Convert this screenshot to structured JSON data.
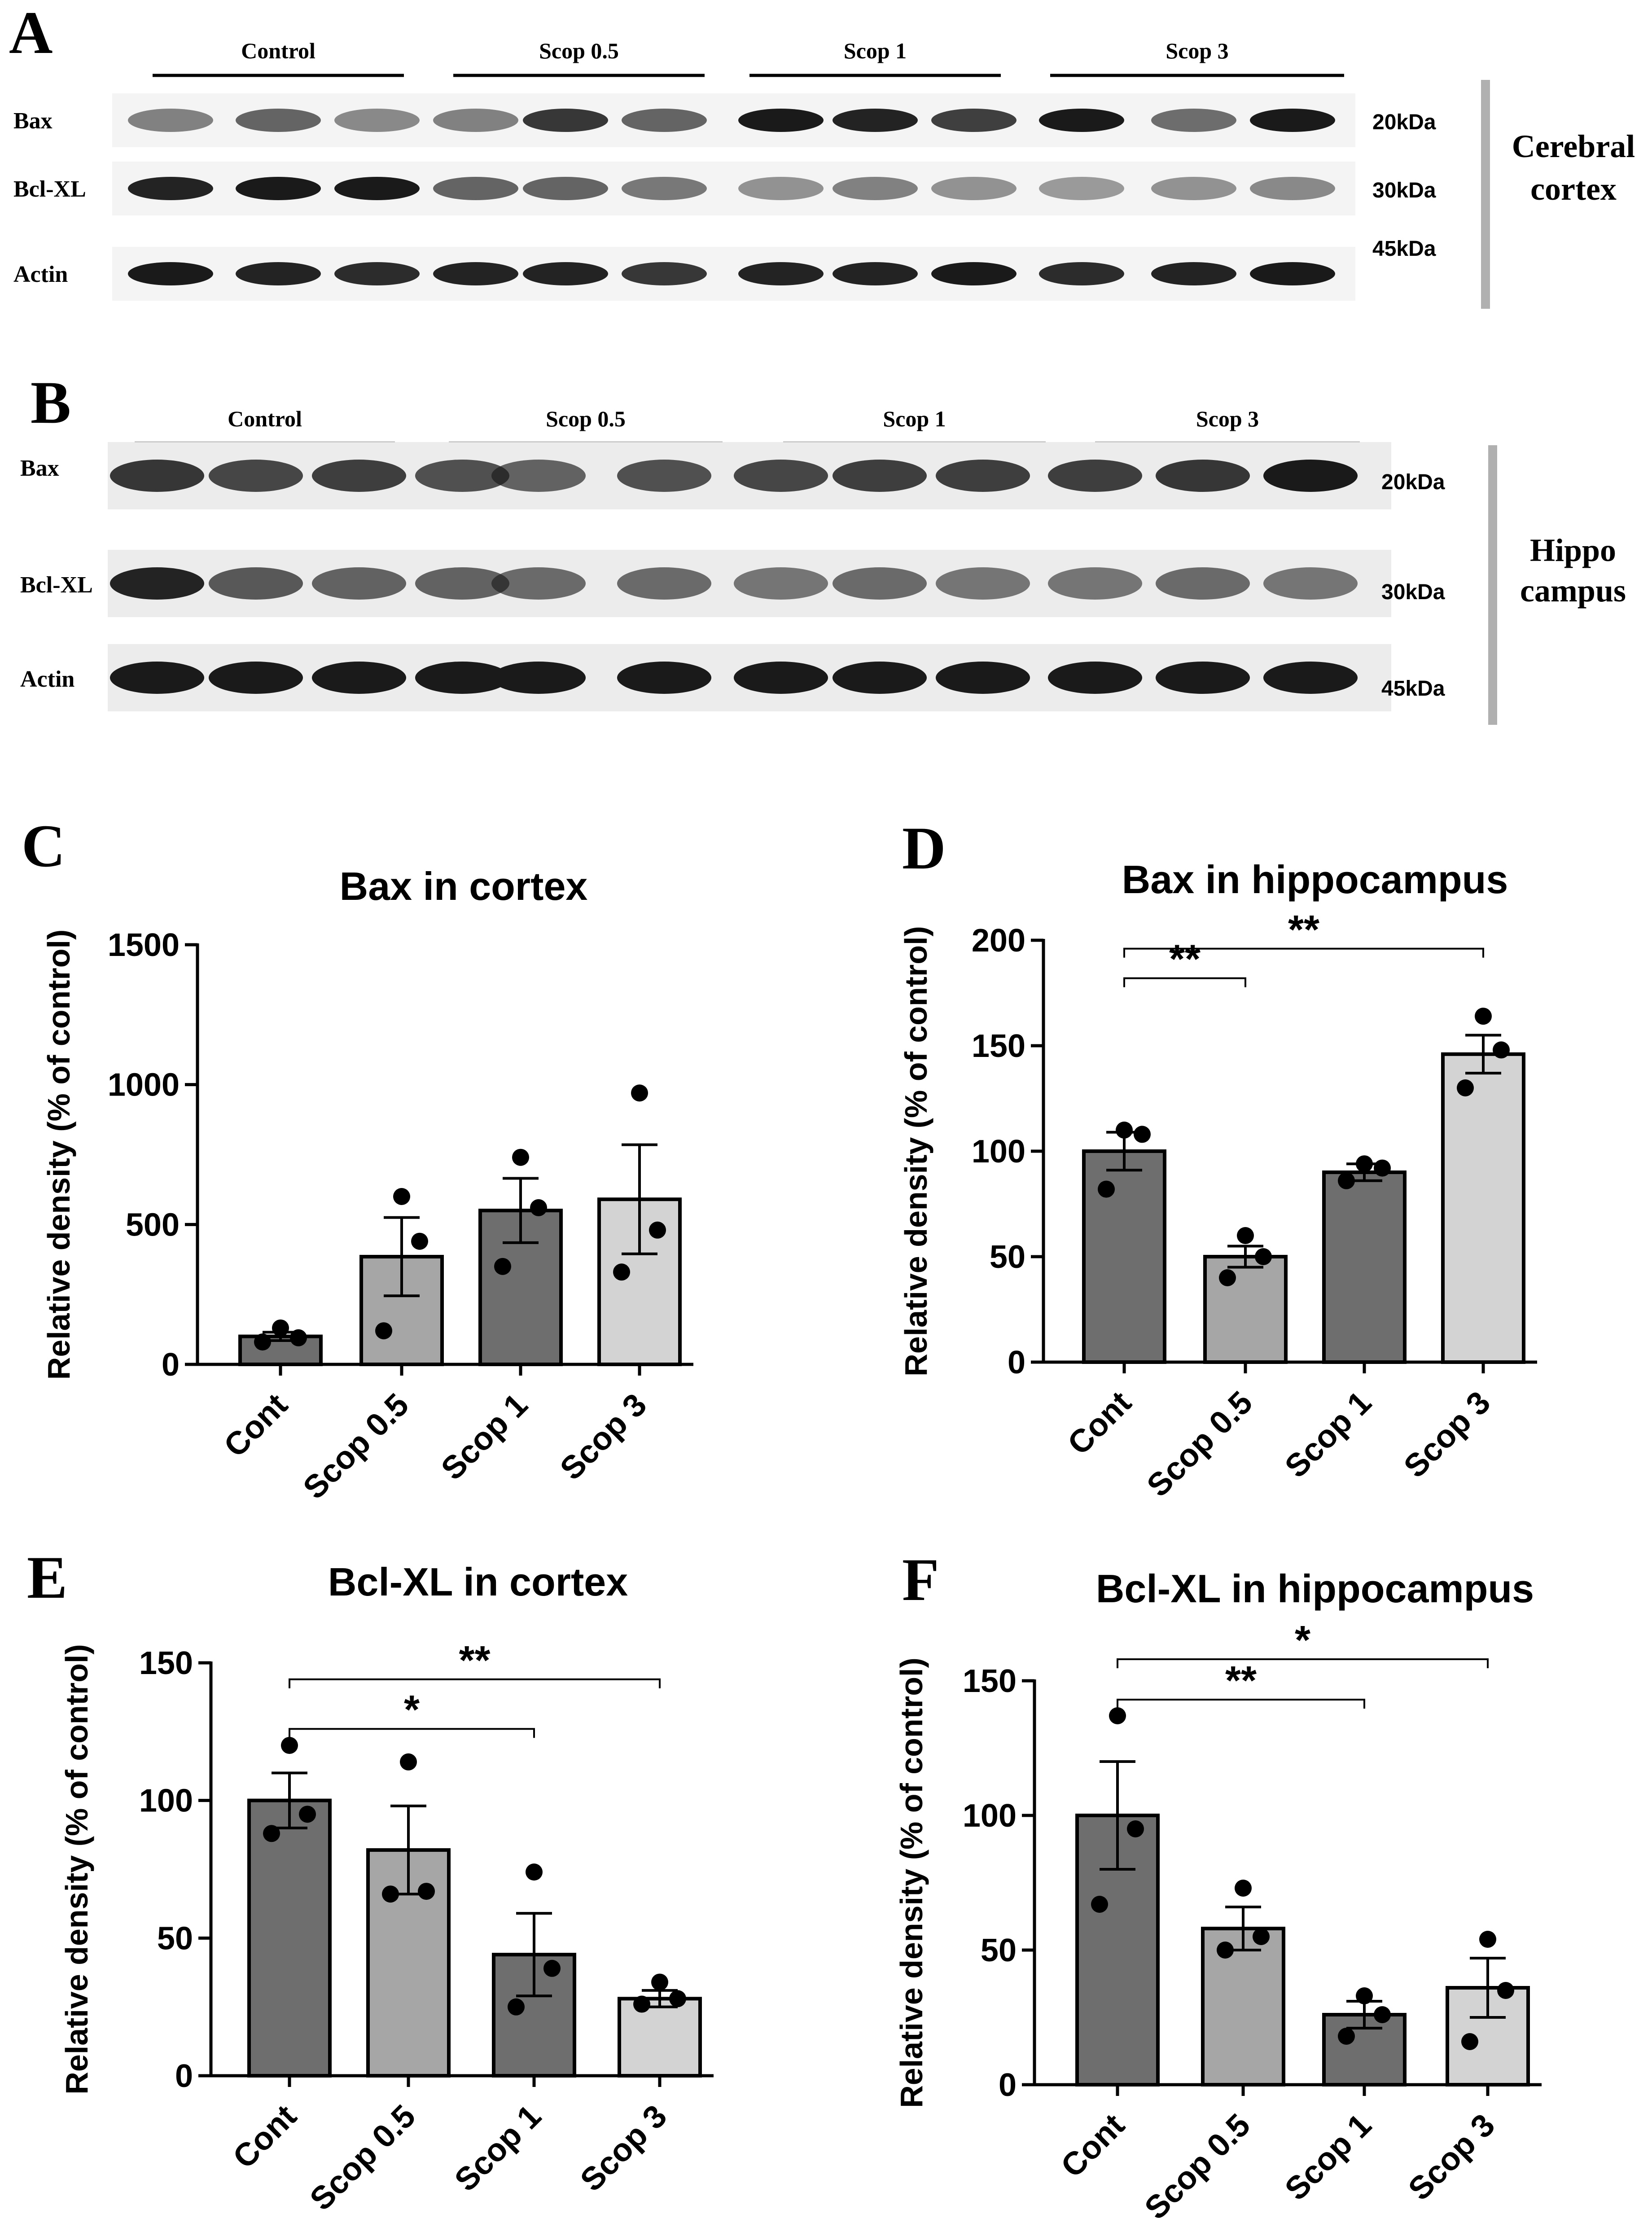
{
  "colors": {
    "bar_dark": "#6e6e6e",
    "bar_mid": "#a6a6a6",
    "bar_light": "#d3d3d3",
    "band": "#1a1a1a",
    "blot_bg": "#f2f2f2",
    "divider": "#b0b0b0"
  },
  "blots": [
    {
      "panel": "A",
      "groups": [
        "Control",
        "Scop 0.5",
        "Scop 1",
        "Scop 3"
      ],
      "rows": [
        {
          "label": "Bax",
          "kda": "20kDa",
          "intensities": [
            0.45,
            0.6,
            0.4,
            0.45,
            0.85,
            0.6,
            1.0,
            0.95,
            0.8,
            1.0,
            0.55,
            1.0
          ]
        },
        {
          "label": "Bcl-XL",
          "kda": "30kDa",
          "intensities": [
            0.95,
            1.0,
            1.0,
            0.6,
            0.6,
            0.5,
            0.35,
            0.45,
            0.35,
            0.3,
            0.35,
            0.4
          ]
        },
        {
          "label": "Actin",
          "kda": "45kDa",
          "intensities": [
            1.0,
            0.95,
            0.9,
            0.95,
            0.95,
            0.85,
            0.95,
            0.95,
            1.0,
            0.9,
            0.95,
            1.0
          ]
        }
      ],
      "tissue": [
        "Cerebral",
        "cortex"
      ]
    },
    {
      "panel": "B",
      "groups": [
        "Control",
        "Scop 0.5",
        "Scop 1",
        "Scop 3"
      ],
      "rows": [
        {
          "label": "Bax",
          "kda": "20kDa",
          "intensities": [
            0.85,
            0.75,
            0.8,
            0.7,
            0.6,
            0.7,
            0.75,
            0.8,
            0.8,
            0.8,
            0.85,
            1.0
          ]
        },
        {
          "label": "Bcl-XL",
          "kda": "30kDa",
          "intensities": [
            0.95,
            0.65,
            0.6,
            0.6,
            0.55,
            0.55,
            0.5,
            0.55,
            0.5,
            0.5,
            0.55,
            0.5
          ]
        },
        {
          "label": "Actin",
          "kda": "45kDa",
          "intensities": [
            1.0,
            1.0,
            1.0,
            1.0,
            1.0,
            1.0,
            1.0,
            1.0,
            1.0,
            1.0,
            1.0,
            1.0
          ]
        }
      ],
      "tissue": [
        "Hippo",
        "campus"
      ]
    }
  ],
  "chart_data": [
    {
      "panel": "C",
      "type": "bar",
      "title": "Bax in cortex",
      "ylabel": "Relative density (% of control)",
      "categories": [
        "Cont",
        "Scop 0.5",
        "Scop 1",
        "Scop 3"
      ],
      "ylim": [
        0,
        1500
      ],
      "yticks": [
        "0",
        "500",
        "1000",
        "1500"
      ],
      "ytick_values": [
        0,
        500,
        1000,
        1500
      ],
      "values": [
        100,
        385,
        550,
        590
      ],
      "sem": [
        15,
        140,
        115,
        195
      ],
      "points": [
        [
          130,
          95,
          80
        ],
        [
          600,
          440,
          120
        ],
        [
          740,
          560,
          350
        ],
        [
          970,
          480,
          330
        ]
      ],
      "significance": []
    },
    {
      "panel": "D",
      "type": "bar",
      "title": "Bax in hippocampus",
      "ylabel": "Relative density (% of control)",
      "categories": [
        "Cont",
        "Scop 0.5",
        "Scop 1",
        "Scop 3"
      ],
      "ylim": [
        0,
        200
      ],
      "yticks": [
        "0",
        "50",
        "100",
        "150",
        "200"
      ],
      "ytick_values": [
        0,
        50,
        100,
        150,
        200
      ],
      "values": [
        100,
        50,
        90,
        146
      ],
      "sem": [
        9,
        5,
        4,
        9
      ],
      "points": [
        [
          110,
          108,
          82
        ],
        [
          60,
          50,
          40
        ],
        [
          94,
          92,
          86
        ],
        [
          164,
          148,
          130
        ]
      ],
      "significance": [
        {
          "from": 0,
          "to": 1,
          "label": "**",
          "level": 182
        },
        {
          "from": 0,
          "to": 3,
          "label": "**",
          "level": 196
        }
      ]
    },
    {
      "panel": "E",
      "type": "bar",
      "title": "Bcl-XL in cortex",
      "ylabel": "Relative density (% of control)",
      "categories": [
        "Cont",
        "Scop 0.5",
        "Scop 1",
        "Scop 3"
      ],
      "ylim": [
        0,
        150
      ],
      "yticks": [
        "0",
        "50",
        "100",
        "150"
      ],
      "ytick_values": [
        0,
        50,
        100,
        150
      ],
      "values": [
        100,
        82,
        44,
        28
      ],
      "sem": [
        10,
        16,
        15,
        3
      ],
      "points": [
        [
          120,
          95,
          88
        ],
        [
          114,
          67,
          66
        ],
        [
          74,
          39,
          25
        ],
        [
          34,
          28,
          26
        ]
      ],
      "significance": [
        {
          "from": 0,
          "to": 2,
          "label": "*",
          "level": 126
        },
        {
          "from": 0,
          "to": 3,
          "label": "**",
          "level": 144
        }
      ]
    },
    {
      "panel": "F",
      "type": "bar",
      "title": "Bcl-XL in hippocampus",
      "ylabel": "Relative density (% of control)",
      "categories": [
        "Cont",
        "Scop 0.5",
        "Scop 1",
        "Scop 3"
      ],
      "ylim": [
        0,
        150
      ],
      "yticks": [
        "0",
        "50",
        "100",
        "150"
      ],
      "ytick_values": [
        0,
        50,
        100,
        150
      ],
      "values": [
        100,
        58,
        26,
        36
      ],
      "sem": [
        20,
        8,
        5,
        11
      ],
      "points": [
        [
          137,
          95,
          67
        ],
        [
          73,
          55,
          50
        ],
        [
          33,
          26,
          18
        ],
        [
          54,
          35,
          16
        ]
      ],
      "significance": [
        {
          "from": 0,
          "to": 2,
          "label": "**",
          "level": 143
        },
        {
          "from": 0,
          "to": 3,
          "label": "*",
          "level": 158
        }
      ]
    }
  ]
}
